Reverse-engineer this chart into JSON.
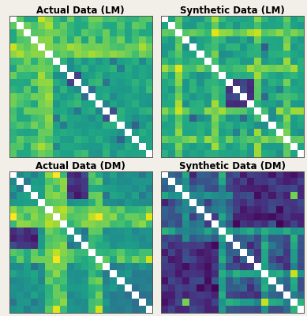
{
  "titles": [
    "Actual Data (LM)",
    "Synthetic Data (LM)",
    "Actual Data (DM)",
    "Synthetic Data (DM)"
  ],
  "n": 20,
  "cmap": "viridis",
  "title_fontsize": 8.5,
  "title_fontweight": "bold",
  "figsize": [
    3.89,
    4.0
  ],
  "dpi": 100,
  "bg_color": "#f2efe9",
  "vmin": -0.3,
  "vmax": 0.9
}
